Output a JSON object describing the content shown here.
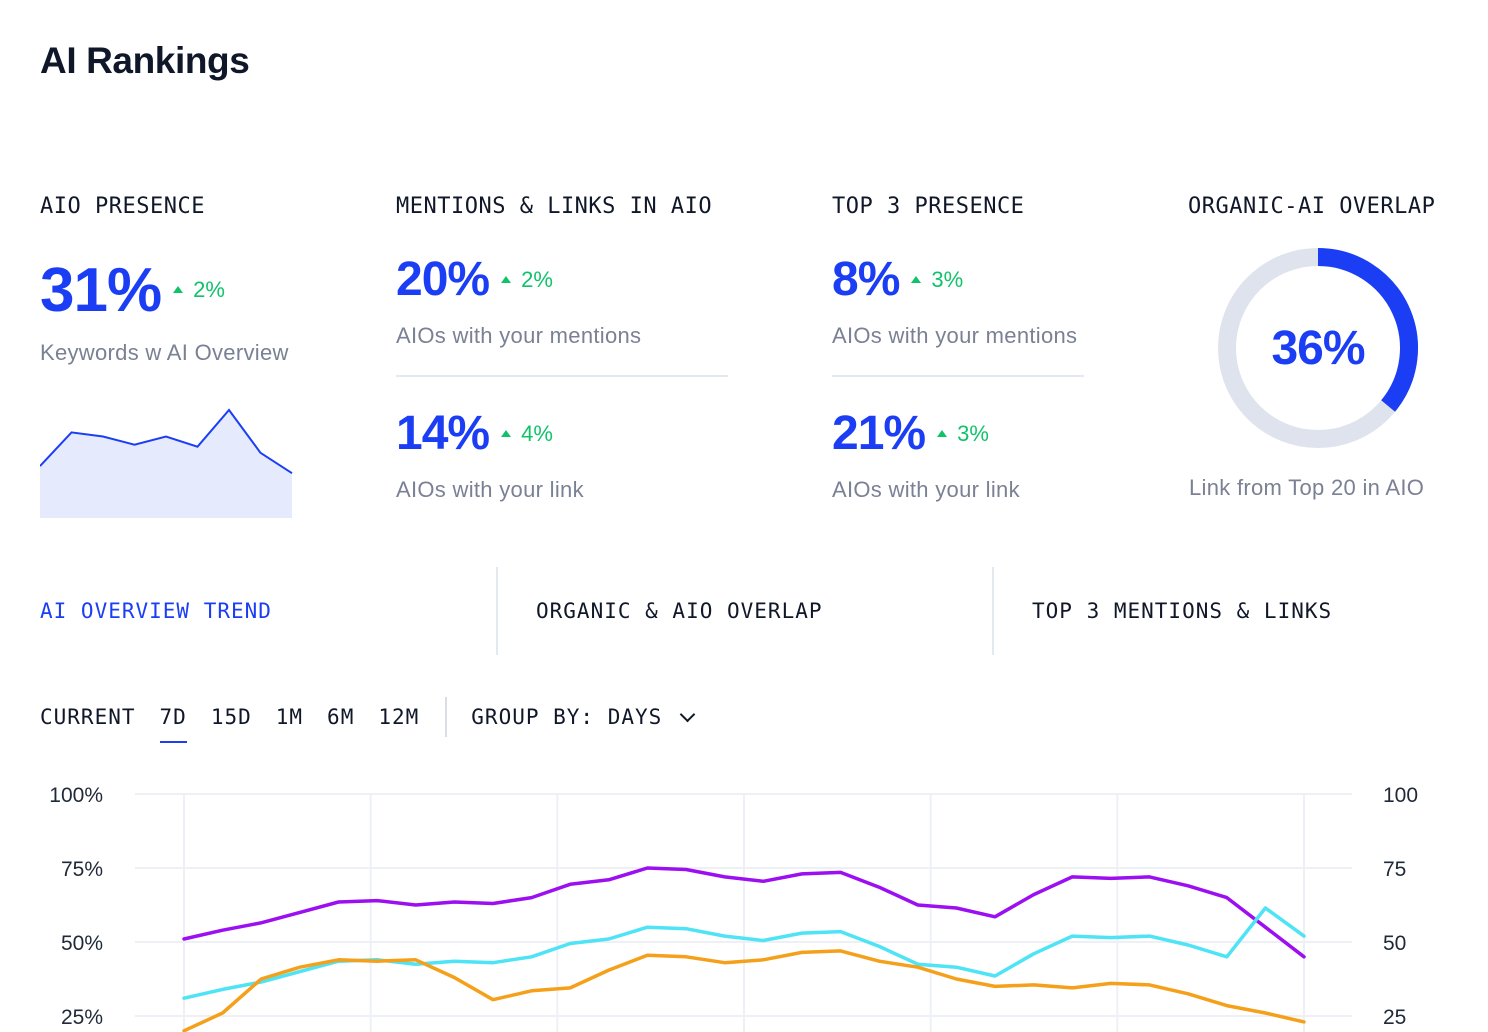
{
  "page_title": "AI Rankings",
  "cards": {
    "aio_presence": {
      "label": "AIO PRESENCE",
      "value": "31%",
      "delta": "2%",
      "sub": "Keywords  w AI Overview",
      "sparkline": [
        45,
        78,
        74,
        66,
        74,
        64,
        100,
        58,
        38
      ]
    },
    "mentions_links": {
      "label": "MENTIONS & LINKS IN AIO",
      "m_value": "20%",
      "m_delta": "2%",
      "m_sub": "AIOs with your mentions",
      "l_value": "14%",
      "l_delta": "4%",
      "l_sub": "AIOs with your link"
    },
    "top3": {
      "label": "TOP 3 PRESENCE",
      "m_value": "8%",
      "m_delta": "3%",
      "m_sub": "AIOs with your mentions",
      "l_value": "21%",
      "l_delta": "3%",
      "l_sub": "AIOs with your link"
    },
    "overlap": {
      "label": "ORGANIC-AI OVERLAP",
      "value": "36%",
      "fraction": 0.36,
      "sub": "Link from Top 20 in AIO"
    }
  },
  "tabs": [
    {
      "label": "AI OVERVIEW TREND",
      "active": true
    },
    {
      "label": "ORGANIC & AIO OVERLAP",
      "active": false
    },
    {
      "label": "TOP 3 MENTIONS & LINKS",
      "active": false
    }
  ],
  "filters": {
    "current_label": "CURRENT",
    "periods": [
      "7D",
      "15D",
      "1M",
      "6M",
      "12M"
    ],
    "selected": "7D",
    "group_by_label": "GROUP BY: DAYS"
  },
  "colors": {
    "accent": "#1b3ef5",
    "positive": "#10c36a",
    "purple": "#9b0ff0",
    "cyan": "#4ee3f5",
    "orange": "#f5a01a"
  },
  "chart_data": {
    "type": "line",
    "y_left_ticks": [
      "100%",
      "75%",
      "50%",
      "25%"
    ],
    "y_right_ticks": [
      "100",
      "75",
      "50",
      "25"
    ],
    "ylim": [
      0,
      100
    ],
    "series": [
      {
        "color": "#9b0ff0",
        "values": [
          51,
          54,
          56.5,
          60,
          63.5,
          64,
          62.5,
          63.5,
          63,
          65,
          69.5,
          71,
          75,
          74.5,
          72,
          70.5,
          73,
          73.5,
          68.5,
          62.5,
          61.5,
          58.5,
          66,
          72,
          71.5,
          72,
          69,
          65,
          55,
          45
        ]
      },
      {
        "color": "#4ee3f5",
        "values": [
          31,
          34,
          36.5,
          40,
          43.5,
          44,
          42.5,
          43.5,
          43,
          45,
          49.5,
          51,
          55,
          54.5,
          52,
          50.5,
          53,
          53.5,
          48.5,
          42.5,
          41.5,
          38.5,
          46,
          52,
          51.5,
          52,
          49,
          45,
          61.5,
          52
        ]
      },
      {
        "color": "#f5a01a",
        "values": [
          20,
          26,
          37.5,
          41.5,
          44,
          43.5,
          44,
          38,
          30.5,
          33.5,
          34.5,
          40.5,
          45.5,
          45,
          43,
          44,
          46.5,
          47,
          43.5,
          41.5,
          37.5,
          35,
          35.5,
          34.5,
          36,
          35.5,
          32.5,
          28.5,
          26,
          23
        ]
      }
    ]
  }
}
